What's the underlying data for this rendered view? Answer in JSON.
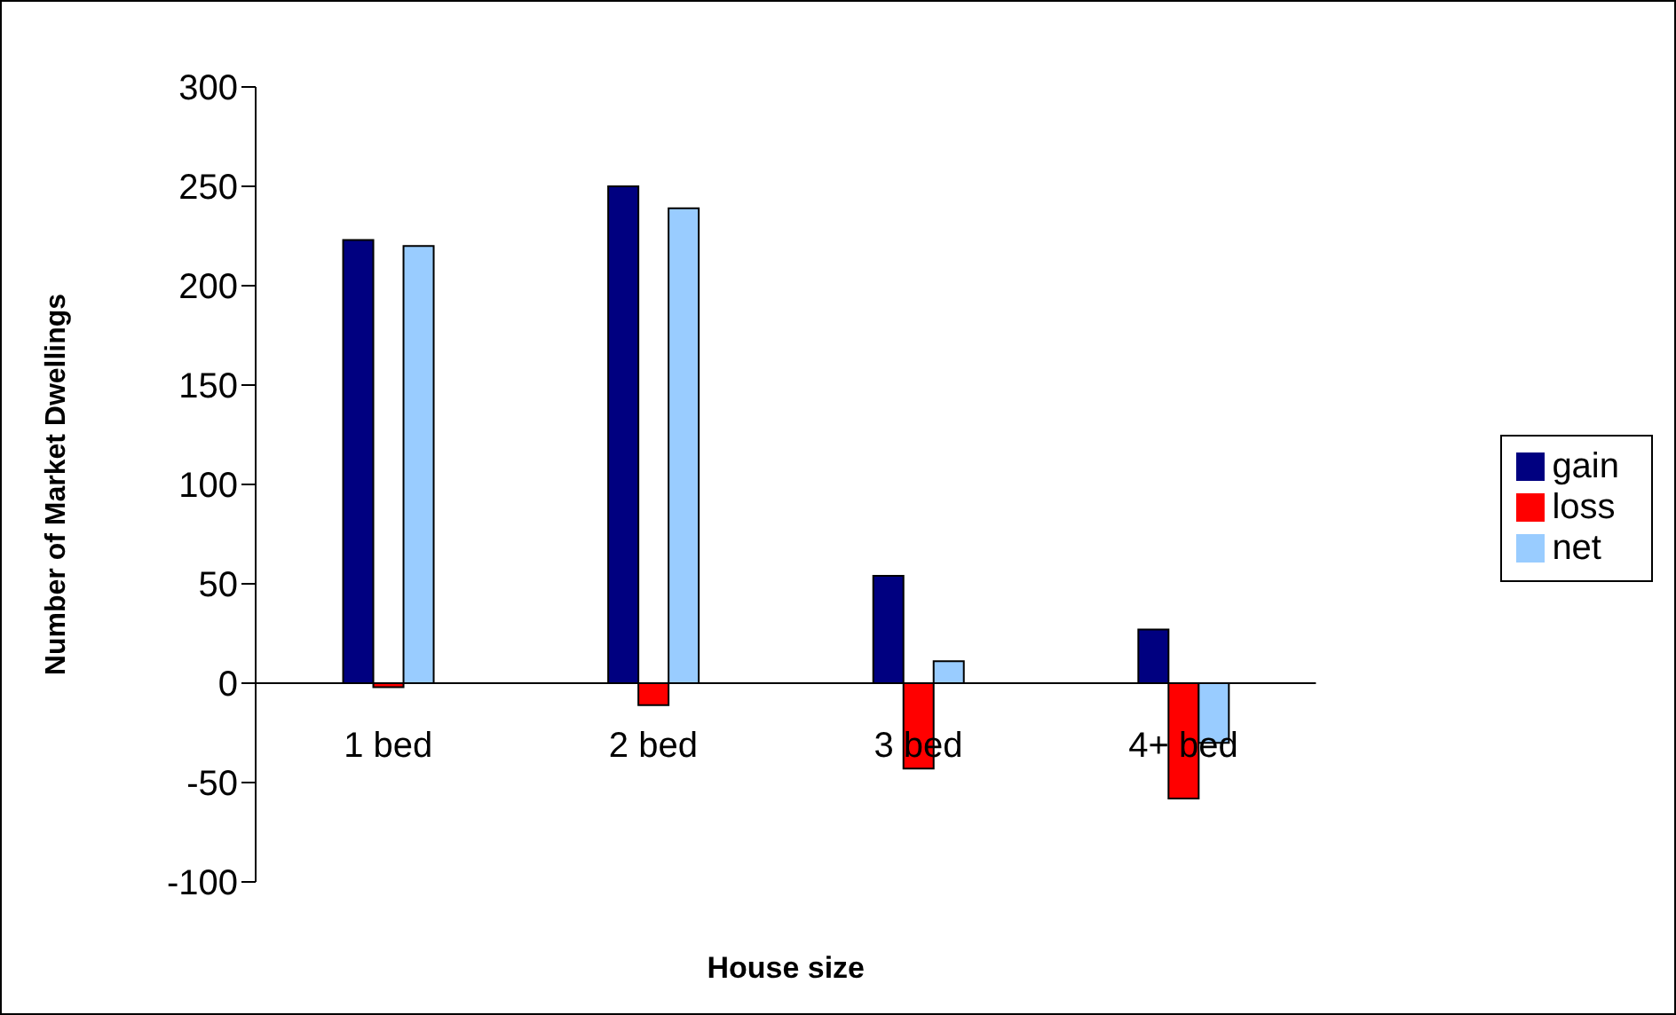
{
  "chart_data": {
    "type": "bar",
    "xlabel": "House size",
    "ylabel": "Number of Market Dwellings",
    "categories": [
      "1 bed",
      "2 bed",
      "3 bed",
      "4+ bed"
    ],
    "series": [
      {
        "name": "gain",
        "color": "#000080",
        "values": [
          223,
          250,
          54,
          27
        ]
      },
      {
        "name": "loss",
        "color": "#ff0000",
        "values": [
          -2,
          -11,
          -43,
          -58
        ]
      },
      {
        "name": "net",
        "color": "#99ccff",
        "values": [
          220,
          239,
          11,
          -30
        ]
      }
    ],
    "ylim": [
      -100,
      300
    ],
    "yticks": [
      -100,
      -50,
      0,
      50,
      100,
      150,
      200,
      250,
      300
    ],
    "grid": false,
    "legend": "right"
  }
}
